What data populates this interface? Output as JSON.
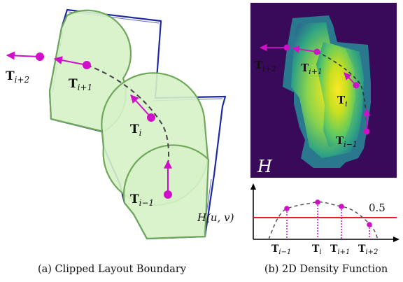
{
  "panel_a": {
    "caption": "(a) Clipped Layout Boundary",
    "labels": {
      "t_i_plus_2": {
        "base": "T",
        "sub": "i+2"
      },
      "t_i_plus_1": {
        "base": "T",
        "sub": "i+1"
      },
      "t_i": {
        "base": "T",
        "sub": "i"
      },
      "t_i_minus_1": {
        "base": "T",
        "sub": "i−1"
      }
    }
  },
  "panel_b": {
    "caption": "(b) 2D Density Function",
    "map_label": "H",
    "labels": {
      "t_i_plus_2": {
        "base": "T",
        "sub": "i+2"
      },
      "t_i_plus_1": {
        "base": "T",
        "sub": "i+1"
      },
      "t_i": {
        "base": "T",
        "sub": "i"
      },
      "t_i_minus_1": {
        "base": "T",
        "sub": "i−1"
      }
    }
  },
  "plot": {
    "y_label": "H(u, v)",
    "threshold_label": "0.5",
    "x_ticks": [
      {
        "base": "T",
        "sub": "i−1"
      },
      {
        "base": "T",
        "sub": "i"
      },
      {
        "base": "T",
        "sub": "i+1"
      },
      {
        "base": "T",
        "sub": "i+2"
      }
    ]
  },
  "colors": {
    "magenta": "#d010c8",
    "boundary_blue": "#1e2aa0",
    "circle_fill": "#d6f2c8",
    "circle_stroke": "#6fa85a",
    "threshold_red": "#e00000",
    "heat_background": "#3a0a5a"
  }
}
